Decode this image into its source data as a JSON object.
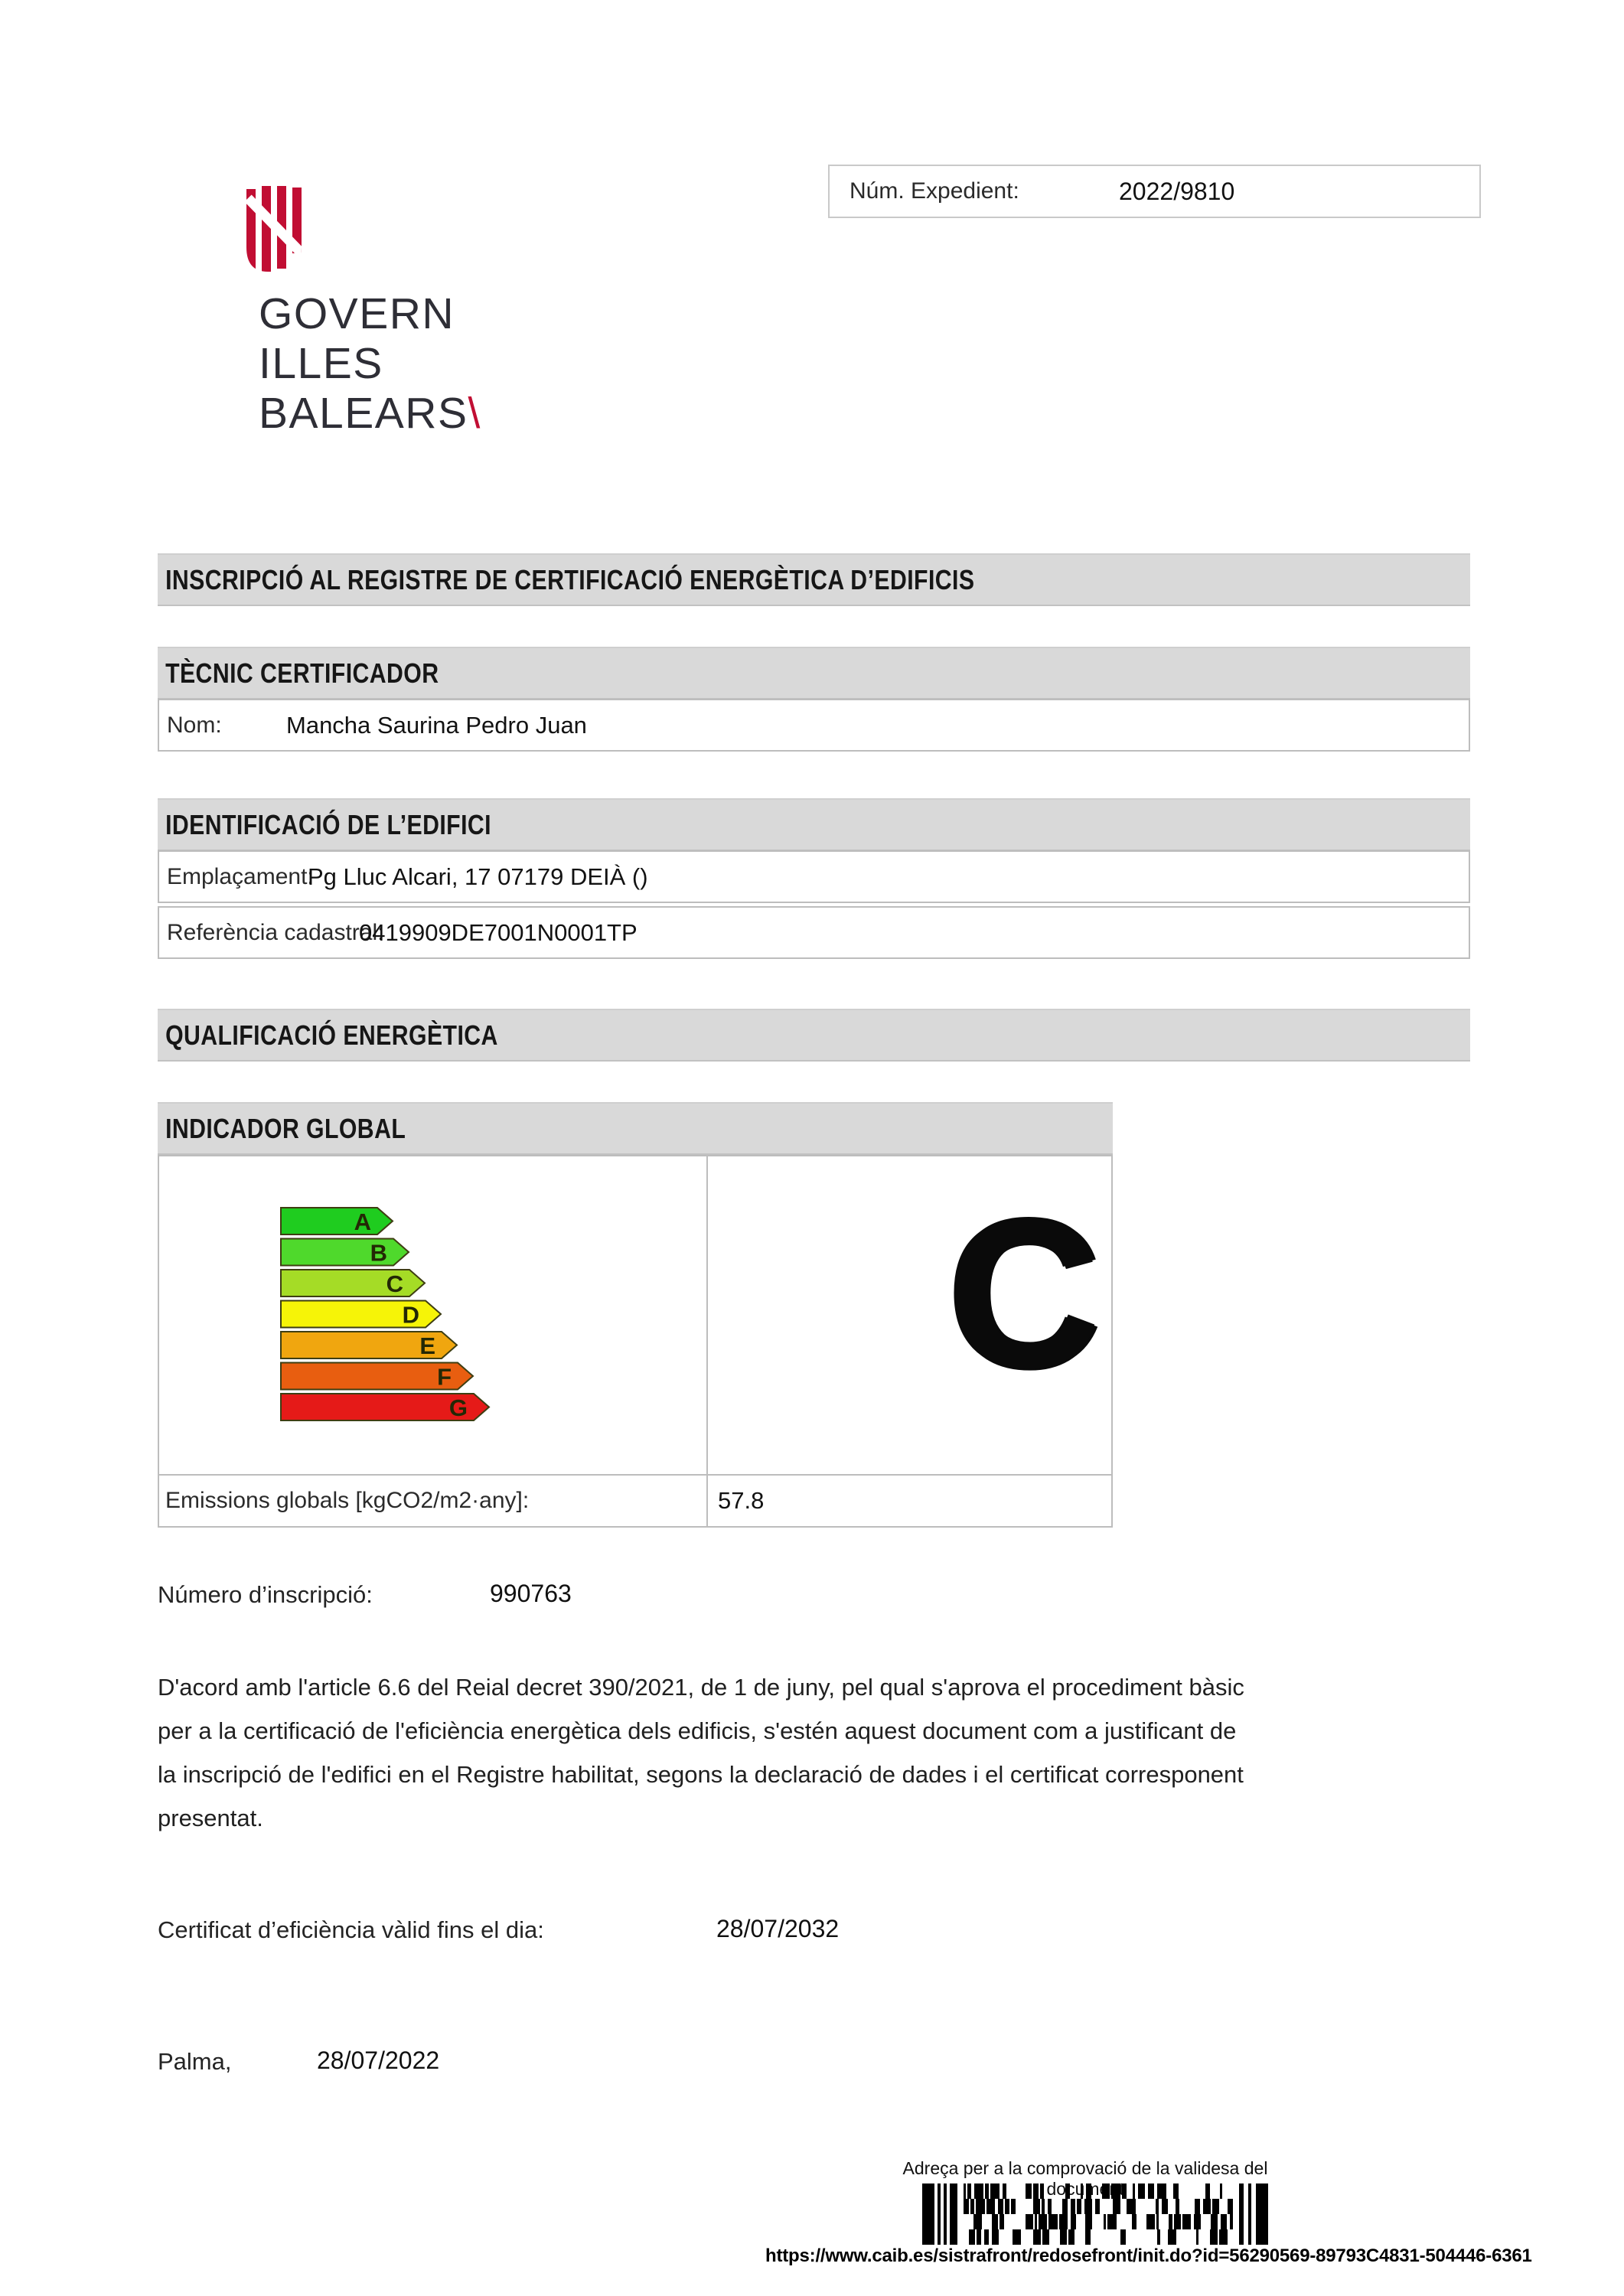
{
  "header": {
    "logo": {
      "lines": [
        "GOVERN",
        "ILLES",
        "BALEARS"
      ],
      "slash": "\\"
    },
    "expedient": {
      "label": "Núm. Expedient:",
      "value": "2022/9810"
    }
  },
  "title_bar": "INSCRIPCIÓ AL REGISTRE DE CERTIFICACIÓ ENERGÈTICA D’EDIFICIS",
  "tecnic": {
    "title": "TÈCNIC CERTIFICADOR",
    "nom_label": "Nom:",
    "nom_value": "Mancha Saurina Pedro Juan"
  },
  "edifici": {
    "title": "IDENTIFICACIÓ DE L’EDIFICI",
    "emplacament_label": "Emplaçament:",
    "emplacament_value": "Pg Lluc Alcari, 17 07179 DEIÀ ()",
    "referencia_label": "Referència cadastral:",
    "referencia_value": "0419909DE7001N0001TP"
  },
  "qualificacio_title": "QUALIFICACIÓ ENERGÈTICA",
  "indicador": {
    "title": "INDICADOR GLOBAL",
    "rating": "C",
    "emissions_label": "Emissions globals [kgCO2/m2·any]:",
    "emissions_value": "57.8",
    "scale": [
      {
        "letter": "A",
        "color": "#1fcc1f"
      },
      {
        "letter": "B",
        "color": "#4fd92c"
      },
      {
        "letter": "C",
        "color": "#a5dc26"
      },
      {
        "letter": "D",
        "color": "#f6f407"
      },
      {
        "letter": "E",
        "color": "#f0a60f"
      },
      {
        "letter": "F",
        "color": "#e85e10"
      },
      {
        "letter": "G",
        "color": "#e51a18"
      }
    ]
  },
  "inscripcio": {
    "label": "Número d’inscripció:",
    "value": "990763"
  },
  "legal_text": "D'acord amb l'article 6.6 del Reial decret 390/2021, de 1 de juny, pel qual s'aprova el procediment bàsic per a la certificació de l'eficiència energètica dels edificis, s'estén aquest document com a justificant de la inscripció de l'edifici en el Registre habilitat, segons la declaració de dades i el certificat corresponent presentat.",
  "valid": {
    "label": "Certificat d’eficiència vàlid fins el dia:",
    "value": "28/07/2032"
  },
  "signature": {
    "place_label": "Palma,",
    "date_value": "28/07/2022"
  },
  "footer": {
    "verify_label": "Adreça per a la comprovació de la validesa del document",
    "url": "https://www.caib.es/sistrafront/redosefront/init.do?id=56290569-89793C4831-504446-6361"
  },
  "colors": {
    "logo_red": "#c10e33",
    "bar_gray": "#d9d9d9"
  }
}
